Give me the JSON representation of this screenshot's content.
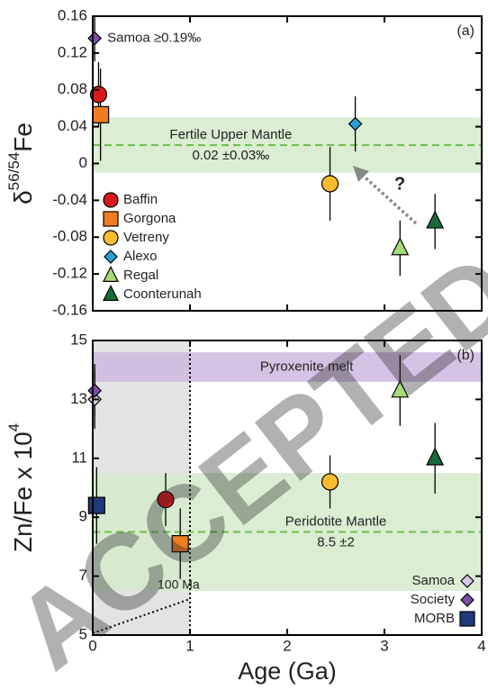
{
  "watermark": "ACCEPTED",
  "chart_data": [
    {
      "type": "scatter",
      "panel_label": "(a)",
      "ylabel_parts": [
        "δ",
        "56/54",
        "Fe"
      ],
      "xlim": [
        0,
        4
      ],
      "xticks": [
        0,
        1,
        2,
        3,
        4
      ],
      "xtick_labels": false,
      "ylim": [
        -0.16,
        0.16
      ],
      "yticks": [
        -0.16,
        -0.12,
        -0.08,
        -0.04,
        0,
        0.04,
        0.08,
        0.12,
        0.16
      ],
      "bands": [
        {
          "ylim": [
            -0.01,
            0.05
          ],
          "line": 0.02,
          "color": "#d5ebcb",
          "line_color": "#6cbf4a",
          "labels": [
            "Fertile Upper Mantle",
            "0.02 ±0.03‰"
          ]
        }
      ],
      "arrow_label": "?",
      "legend": "upper left",
      "series": [
        {
          "name": "Samoa ≥0.19‰",
          "label_beside": true,
          "in_legend": false,
          "marker": "diamond",
          "color": "#7b4fa8",
          "x": [
            0.02
          ],
          "values": [
            0.136
          ],
          "errors": [
            0.025
          ]
        },
        {
          "name": "Baffin",
          "in_legend": true,
          "marker": "circle",
          "color": "#d7191c",
          "x": [
            0.06
          ],
          "values": [
            0.075
          ],
          "errors": [
            0.035
          ]
        },
        {
          "name": "Gorgona",
          "in_legend": true,
          "marker": "square",
          "color": "#f07c22",
          "x": [
            0.08
          ],
          "values": [
            0.053
          ],
          "errors": [
            0.05
          ]
        },
        {
          "name": "Vetreny",
          "in_legend": true,
          "marker": "circle",
          "color": "#fdbb2f",
          "x": [
            2.44
          ],
          "values": [
            -0.022
          ],
          "errors": [
            0.04
          ]
        },
        {
          "name": "Alexo",
          "in_legend": true,
          "marker": "diamond",
          "color": "#2aa0d8",
          "x": [
            2.7
          ],
          "values": [
            0.043
          ],
          "errors": [
            0.03
          ]
        },
        {
          "name": "Regal",
          "in_legend": true,
          "marker": "triangle",
          "color": "#a6d97a",
          "x": [
            3.16
          ],
          "values": [
            -0.092
          ],
          "errors": [
            0.03
          ]
        },
        {
          "name": "Coonterunah",
          "in_legend": true,
          "marker": "triangle",
          "color": "#1a6b3a",
          "x": [
            3.52
          ],
          "values": [
            -0.063
          ],
          "errors": [
            0.03
          ]
        }
      ]
    },
    {
      "type": "scatter",
      "panel_label": "(b)",
      "ylabel_parts": [
        "Zn/Fe x 10",
        "4"
      ],
      "xlabel": "Age (Ga)",
      "xlim": [
        0,
        4
      ],
      "xticks": [
        0,
        1,
        2,
        3,
        4
      ],
      "xtick_labels": true,
      "ylim": [
        5,
        15
      ],
      "yticks": [
        5,
        7,
        9,
        11,
        13,
        15
      ],
      "shaded_xrange": [
        0,
        1
      ],
      "shade_label": "100 Ma",
      "bands": [
        {
          "ylim": [
            13.6,
            14.6
          ],
          "color": "#cdb9e0",
          "labels": [
            "Pyroxenite melt"
          ]
        },
        {
          "ylim": [
            6.5,
            10.5
          ],
          "line": 8.5,
          "color": "#d5ebcb",
          "line_color": "#6cbf4a",
          "labels": [
            "Peridotite Mantle",
            "8.5 ±2"
          ]
        }
      ],
      "legend": "lower right",
      "series": [
        {
          "name": "Samoa",
          "in_legend": true,
          "marker": "diamond",
          "color": "#d9c6e8",
          "x": [
            0.02
          ],
          "values": [
            13.0
          ],
          "errors": [
            1.0
          ]
        },
        {
          "name": "Society",
          "in_legend": true,
          "marker": "diamond",
          "color": "#7b4fa8",
          "x": [
            0.02
          ],
          "values": [
            13.3
          ],
          "errors": [
            0.9
          ]
        },
        {
          "name": "MORB",
          "in_legend": true,
          "marker": "square",
          "color": "#1f3a7a",
          "x": [
            0.04
          ],
          "values": [
            9.4
          ],
          "errors": [
            1.3
          ]
        },
        {
          "in_legend": false,
          "marker": "circle",
          "color": "#d7191c",
          "x": [
            0.75
          ],
          "values": [
            9.6
          ],
          "errors": [
            0.9
          ]
        },
        {
          "in_legend": false,
          "marker": "square",
          "color": "#f07c22",
          "x": [
            0.9
          ],
          "values": [
            8.1
          ],
          "errors": [
            1.2
          ]
        },
        {
          "in_legend": false,
          "marker": "circle",
          "color": "#fdbb2f",
          "x": [
            2.44
          ],
          "values": [
            10.2
          ],
          "errors": [
            0.9
          ]
        },
        {
          "in_legend": false,
          "marker": "triangle",
          "color": "#a6d97a",
          "x": [
            3.16
          ],
          "values": [
            13.3
          ],
          "errors": [
            1.2
          ]
        },
        {
          "in_legend": false,
          "marker": "triangle",
          "color": "#1a6b3a",
          "x": [
            3.52
          ],
          "values": [
            11.0
          ],
          "errors": [
            1.2
          ]
        }
      ]
    }
  ]
}
